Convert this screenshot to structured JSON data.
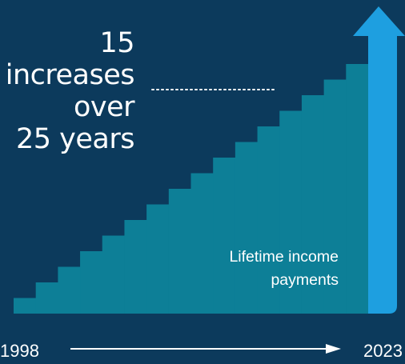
{
  "headline": {
    "lines": [
      "15",
      "increases",
      "over",
      "25 years"
    ]
  },
  "colors": {
    "background": "#0c3a5c",
    "staircase": "#0d7f97",
    "arrow": "#1e9fe0",
    "text": "#ffffff"
  },
  "chart_data": {
    "type": "area",
    "title": "15 increases over 25 years",
    "series": [
      {
        "name": "Lifetime income payments",
        "label_lines": [
          "Lifetime income",
          "payments"
        ],
        "steps": 15,
        "values": [
          1,
          2,
          3,
          4,
          5,
          6,
          7,
          8,
          9,
          10,
          11,
          12,
          13,
          14,
          15,
          16
        ]
      }
    ],
    "x_range": [
      "1998",
      "2023"
    ],
    "xlabel": "",
    "ylabel": "",
    "grid": false,
    "legend": "none"
  }
}
